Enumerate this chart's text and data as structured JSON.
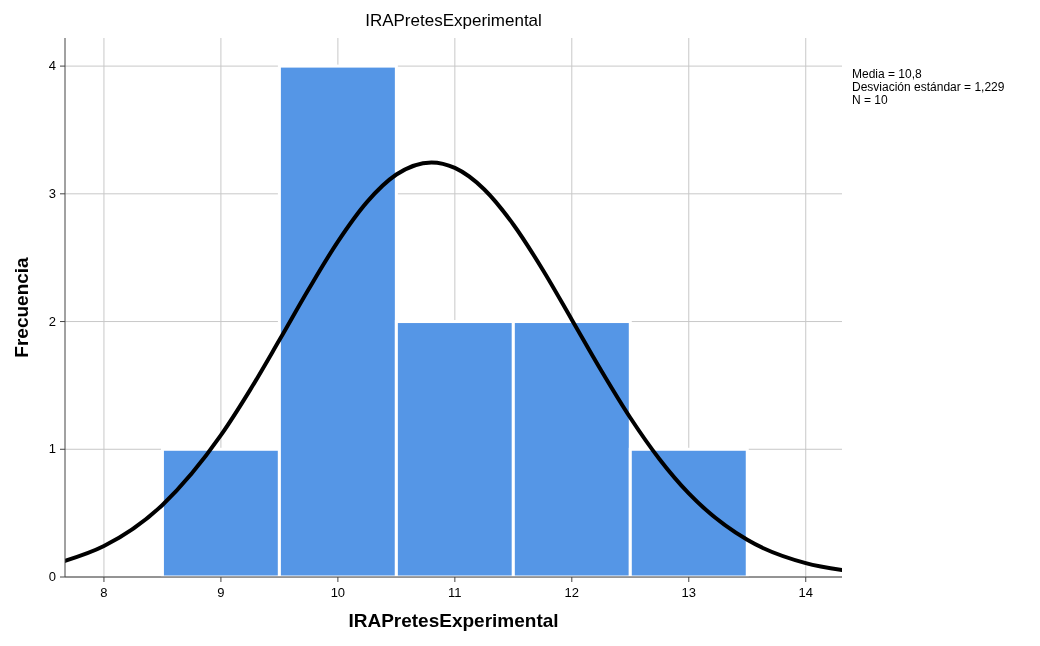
{
  "chart_data": {
    "type": "histogram",
    "title": "IRAPretesExperimental",
    "xlabel": "IRAPretesExperimental",
    "ylabel": "Frecuencia",
    "annotations": [
      "Media = 10,8",
      "Desviación estándar = 1,229",
      "N = 10"
    ],
    "bins": [
      8.5,
      9.5,
      10.5,
      11.5,
      12.5,
      13.5
    ],
    "series": [
      {
        "color": "#5596e6",
        "values": [
          1,
          4,
          2,
          2,
          1
        ]
      },
      {
        "type": "line",
        "color": "#000000",
        "x": [
          7.667,
          8,
          8.5,
          9,
          9.25,
          9.5,
          9.75,
          10,
          10.25,
          10.5,
          10.8,
          11,
          11.25,
          11.5,
          11.75,
          12,
          12.25,
          12.5,
          12.75,
          13,
          13.5,
          14,
          14.31
        ],
        "values": [
          0.126,
          0.242,
          0.564,
          1.11,
          1.465,
          1.855,
          2.253,
          2.626,
          2.937,
          3.151,
          3.246,
          3.203,
          3.036,
          2.76,
          2.408,
          2.015,
          1.619,
          1.247,
          0.922,
          0.654,
          0.291,
          0.109,
          0.055
        ]
      }
    ],
    "xlim": [
      7.667,
      14.31
    ],
    "ylim": [
      0,
      4.22
    ],
    "xticks": [
      8,
      9,
      10,
      11,
      12,
      13,
      14
    ],
    "yticks": [
      0,
      1,
      2,
      3,
      4
    ],
    "grid": true
  }
}
